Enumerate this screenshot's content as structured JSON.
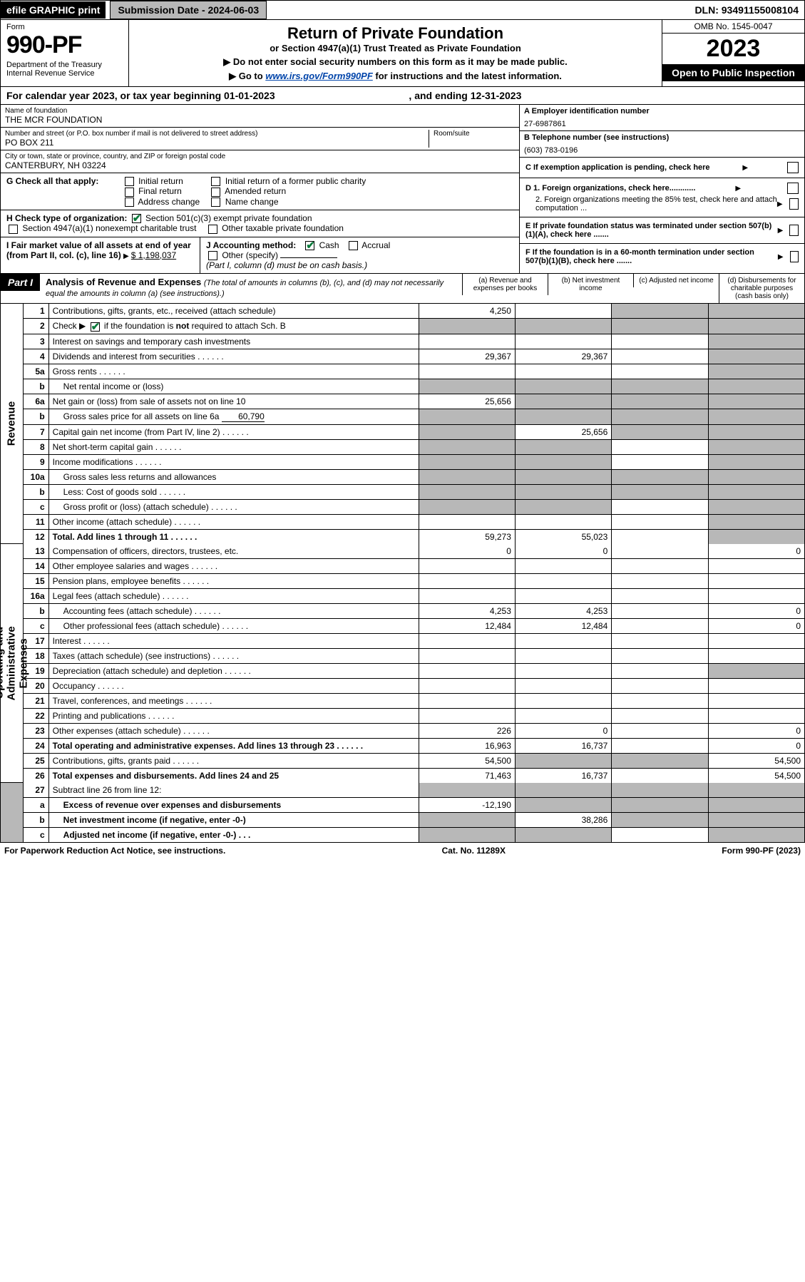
{
  "topbar": {
    "efile": "efile GRAPHIC print",
    "submission": "Submission Date - 2024-06-03",
    "dln": "DLN: 93491155008104"
  },
  "header": {
    "form_word": "Form",
    "form_num": "990-PF",
    "dept": "Department of the Treasury\nInternal Revenue Service",
    "title": "Return of Private Foundation",
    "subtitle": "or Section 4947(a)(1) Trust Treated as Private Foundation",
    "instr1": "▶ Do not enter social security numbers on this form as it may be made public.",
    "instr2_pre": "▶ Go to ",
    "instr2_link": "www.irs.gov/Form990PF",
    "instr2_post": " for instructions and the latest information.",
    "omb": "OMB No. 1545-0047",
    "year": "2023",
    "open": "Open to Public Inspection"
  },
  "cal_year": {
    "pre": "For calendar year 2023, or tax year beginning ",
    "begin": "01-01-2023",
    "mid": " , and ending ",
    "end": "12-31-2023"
  },
  "name_block": {
    "label": "Name of foundation",
    "value": "THE MCR FOUNDATION",
    "addr_label": "Number and street (or P.O. box number if mail is not delivered to street address)",
    "room_label": "Room/suite",
    "addr_value": "PO BOX 211",
    "city_label": "City or town, state or province, country, and ZIP or foreign postal code",
    "city_value": "CANTERBURY, NH  03224"
  },
  "right_info": {
    "a_label": "A Employer identification number",
    "a_value": "27-6987861",
    "b_label": "B Telephone number (see instructions)",
    "b_value": "(603) 783-0196",
    "c_label": "C If exemption application is pending, check here",
    "d1": "D 1. Foreign organizations, check here............",
    "d2": "2. Foreign organizations meeting the 85% test, check here and attach computation ...",
    "e": "E If private foundation status was terminated under section 507(b)(1)(A), check here .......",
    "f": "F If the foundation is in a 60-month termination under section 507(b)(1)(B), check here ......."
  },
  "g_block": {
    "label": "G Check all that apply:",
    "opts": [
      "Initial return",
      "Final return",
      "Address change",
      "Initial return of a former public charity",
      "Amended return",
      "Name change"
    ]
  },
  "h_block": {
    "label": "H Check type of organization:",
    "opt1": "Section 501(c)(3) exempt private foundation",
    "opt2": "Section 4947(a)(1) nonexempt charitable trust",
    "opt3": "Other taxable private foundation"
  },
  "i_block": {
    "label": "I Fair market value of all assets at end of year (from Part II, col. (c), line 16)",
    "value": "$  1,198,037"
  },
  "j_block": {
    "label": "J Accounting method:",
    "cash": "Cash",
    "accrual": "Accrual",
    "other": "Other (specify)",
    "note": "(Part I, column (d) must be on cash basis.)"
  },
  "part1": {
    "label": "Part I",
    "title": "Analysis of Revenue and Expenses",
    "sub": "(The total of amounts in columns (b), (c), and (d) may not necessarily equal the amounts in column (a) (see instructions).)",
    "cols": {
      "a": "(a)  Revenue and expenses per books",
      "b": "(b)  Net investment income",
      "c": "(c)  Adjusted net income",
      "d": "(d)  Disbursements for charitable purposes (cash basis only)"
    }
  },
  "sections": {
    "revenue": "Revenue",
    "expenses": "Operating and Administrative Expenses"
  },
  "rows": [
    {
      "n": "1",
      "desc": "Contributions, gifts, grants, etc., received (attach schedule)",
      "a": "4,250",
      "b": "",
      "c": "g",
      "d": "g"
    },
    {
      "n": "2",
      "desc": "Check ▶ ☑ if the foundation is not required to attach Sch. B",
      "a": "g",
      "b": "g",
      "c": "g",
      "d": "g",
      "dotted": true,
      "checked": true
    },
    {
      "n": "3",
      "desc": "Interest on savings and temporary cash investments",
      "a": "",
      "b": "",
      "c": "",
      "d": "g"
    },
    {
      "n": "4",
      "desc": "Dividends and interest from securities",
      "a": "29,367",
      "b": "29,367",
      "c": "",
      "d": "g",
      "dots": true
    },
    {
      "n": "5a",
      "desc": "Gross rents",
      "a": "",
      "b": "",
      "c": "",
      "d": "g",
      "dots": true
    },
    {
      "n": "b",
      "desc": "Net rental income or (loss)",
      "a": "g",
      "b": "g",
      "c": "g",
      "d": "g",
      "inset": true
    },
    {
      "n": "6a",
      "desc": "Net gain or (loss) from sale of assets not on line 10",
      "a": "25,656",
      "b": "g",
      "c": "g",
      "d": "g"
    },
    {
      "n": "b",
      "desc": "Gross sales price for all assets on line 6a",
      "val": "60,790",
      "a": "g",
      "b": "g",
      "c": "g",
      "d": "g",
      "inset": true
    },
    {
      "n": "7",
      "desc": "Capital gain net income (from Part IV, line 2)",
      "a": "g",
      "b": "25,656",
      "c": "g",
      "d": "g",
      "dots": true
    },
    {
      "n": "8",
      "desc": "Net short-term capital gain",
      "a": "g",
      "b": "g",
      "c": "",
      "d": "g",
      "dots": true
    },
    {
      "n": "9",
      "desc": "Income modifications",
      "a": "g",
      "b": "g",
      "c": "",
      "d": "g",
      "dots": true
    },
    {
      "n": "10a",
      "desc": "Gross sales less returns and allowances",
      "a": "g",
      "b": "g",
      "c": "g",
      "d": "g",
      "inset": true
    },
    {
      "n": "b",
      "desc": "Less: Cost of goods sold",
      "a": "g",
      "b": "g",
      "c": "g",
      "d": "g",
      "inset": true,
      "dots": true
    },
    {
      "n": "c",
      "desc": "Gross profit or (loss) (attach schedule)",
      "a": "g",
      "b": "g",
      "c": "",
      "d": "g",
      "inset": true,
      "dots": true
    },
    {
      "n": "11",
      "desc": "Other income (attach schedule)",
      "a": "",
      "b": "",
      "c": "",
      "d": "g",
      "dots": true
    },
    {
      "n": "12",
      "desc": "Total. Add lines 1 through 11",
      "a": "59,273",
      "b": "55,023",
      "c": "",
      "d": "g",
      "bold": true,
      "dots": true
    }
  ],
  "exp_rows": [
    {
      "n": "13",
      "desc": "Compensation of officers, directors, trustees, etc.",
      "a": "0",
      "b": "0",
      "c": "",
      "d": "0"
    },
    {
      "n": "14",
      "desc": "Other employee salaries and wages",
      "a": "",
      "b": "",
      "c": "",
      "d": "",
      "dots": true
    },
    {
      "n": "15",
      "desc": "Pension plans, employee benefits",
      "a": "",
      "b": "",
      "c": "",
      "d": "",
      "dots": true
    },
    {
      "n": "16a",
      "desc": "Legal fees (attach schedule)",
      "a": "",
      "b": "",
      "c": "",
      "d": "",
      "dots": true
    },
    {
      "n": "b",
      "desc": "Accounting fees (attach schedule)",
      "a": "4,253",
      "b": "4,253",
      "c": "",
      "d": "0",
      "inset": true,
      "dots": true
    },
    {
      "n": "c",
      "desc": "Other professional fees (attach schedule)",
      "a": "12,484",
      "b": "12,484",
      "c": "",
      "d": "0",
      "inset": true,
      "dots": true
    },
    {
      "n": "17",
      "desc": "Interest",
      "a": "",
      "b": "",
      "c": "",
      "d": "",
      "dots": true
    },
    {
      "n": "18",
      "desc": "Taxes (attach schedule) (see instructions)",
      "a": "",
      "b": "",
      "c": "",
      "d": "",
      "dots": true
    },
    {
      "n": "19",
      "desc": "Depreciation (attach schedule) and depletion",
      "a": "",
      "b": "",
      "c": "",
      "d": "g",
      "dots": true
    },
    {
      "n": "20",
      "desc": "Occupancy",
      "a": "",
      "b": "",
      "c": "",
      "d": "",
      "dots": true
    },
    {
      "n": "21",
      "desc": "Travel, conferences, and meetings",
      "a": "",
      "b": "",
      "c": "",
      "d": "",
      "dots": true
    },
    {
      "n": "22",
      "desc": "Printing and publications",
      "a": "",
      "b": "",
      "c": "",
      "d": "",
      "dots": true
    },
    {
      "n": "23",
      "desc": "Other expenses (attach schedule)",
      "a": "226",
      "b": "0",
      "c": "",
      "d": "0",
      "dots": true
    },
    {
      "n": "24",
      "desc": "Total operating and administrative expenses. Add lines 13 through 23",
      "a": "16,963",
      "b": "16,737",
      "c": "",
      "d": "0",
      "bold": true,
      "dots": true
    },
    {
      "n": "25",
      "desc": "Contributions, gifts, grants paid",
      "a": "54,500",
      "b": "g",
      "c": "g",
      "d": "54,500",
      "dots": true
    },
    {
      "n": "26",
      "desc": "Total expenses and disbursements. Add lines 24 and 25",
      "a": "71,463",
      "b": "16,737",
      "c": "",
      "d": "54,500",
      "bold": true
    }
  ],
  "bottom_rows": [
    {
      "n": "27",
      "desc": "Subtract line 26 from line 12:",
      "a": "g",
      "b": "g",
      "c": "g",
      "d": "g"
    },
    {
      "n": "a",
      "desc": "Excess of revenue over expenses and disbursements",
      "a": "-12,190",
      "b": "g",
      "c": "g",
      "d": "g",
      "bold": true,
      "inset": true
    },
    {
      "n": "b",
      "desc": "Net investment income (if negative, enter -0-)",
      "a": "g",
      "b": "38,286",
      "c": "g",
      "d": "g",
      "bold": true,
      "inset": true
    },
    {
      "n": "c",
      "desc": "Adjusted net income (if negative, enter -0-)",
      "a": "g",
      "b": "g",
      "c": "",
      "d": "g",
      "bold": true,
      "inset": true,
      "dots": true
    }
  ],
  "footer": {
    "left": "For Paperwork Reduction Act Notice, see instructions.",
    "mid": "Cat. No. 11289X",
    "right": "Form 990-PF (2023)"
  },
  "colors": {
    "grey": "#b8b8b8",
    "green_check": "#0a7a3a",
    "link": "#0044aa"
  }
}
